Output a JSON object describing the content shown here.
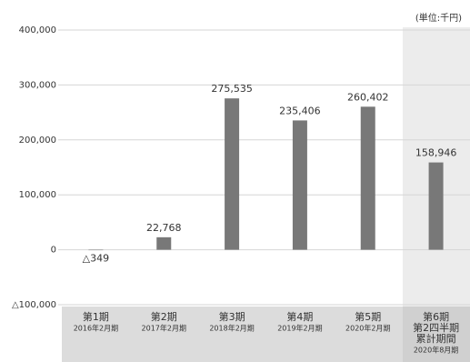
{
  "chart_data": {
    "type": "bar",
    "unit_label": "(単位:千円)",
    "categories": [
      [
        "第1期",
        "2016年2月期"
      ],
      [
        "第2期",
        "2017年2月期"
      ],
      [
        "第3期",
        "2018年2月期"
      ],
      [
        "第4期",
        "2019年2月期"
      ],
      [
        "第5期",
        "2020年2月期"
      ],
      [
        "第6期",
        "第2四半期",
        "累計期間",
        "2020年8月期"
      ]
    ],
    "values": [
      -349,
      22768,
      275535,
      235406,
      260402,
      158946
    ],
    "value_labels": [
      "△349",
      "22,768",
      "275,535",
      "235,406",
      "260,402",
      "158,946"
    ],
    "color": "#787878",
    "ylim": [
      -100000,
      400000
    ],
    "yticks": [
      {
        "value": -100000,
        "label": "△100,000"
      },
      0,
      {
        "value": 100000,
        "label": "100,000"
      },
      {
        "value": 200000,
        "label": "200,000"
      },
      {
        "value": 300000,
        "label": "300,000"
      },
      {
        "value": 400000,
        "label": "400,000"
      }
    ],
    "grid": true
  }
}
